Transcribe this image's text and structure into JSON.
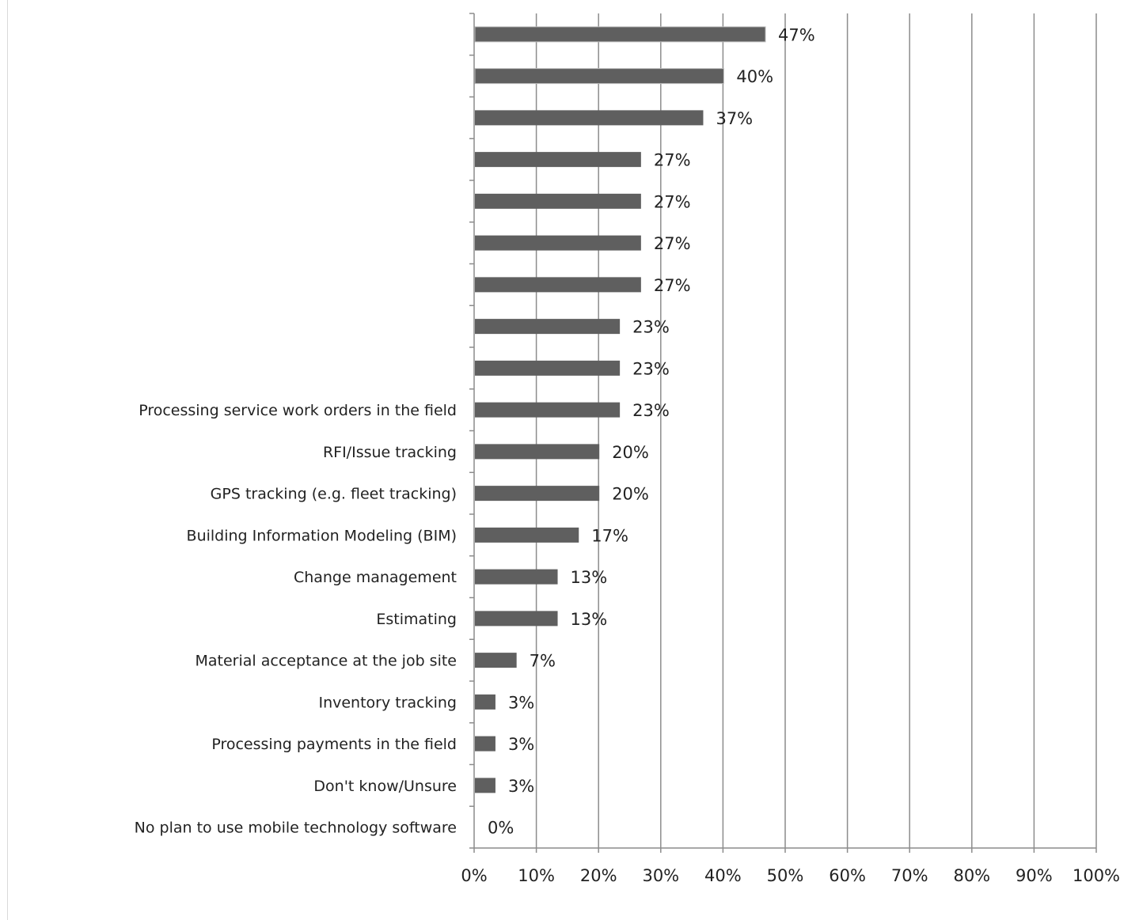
{
  "chart_data": {
    "type": "bar",
    "orientation": "horizontal",
    "title": "",
    "xlabel": "",
    "ylabel": "",
    "xlim": [
      0,
      100
    ],
    "grid": true,
    "legend": "none",
    "categories": [
      "",
      "",
      "",
      "",
      "",
      "",
      "",
      "",
      "",
      "Processing service work orders in the field",
      "RFI/Issue tracking",
      "GPS tracking (e.g. fleet tracking)",
      "Building Information Modeling (BIM)",
      "Change management",
      "Estimating",
      "Material acceptance at the job site",
      "Inventory tracking",
      "Processing payments in the field",
      "Don't know/Unsure",
      "No plan to use mobile technology software"
    ],
    "values": [
      46.7,
      40,
      36.7,
      26.7,
      26.7,
      26.7,
      26.7,
      23.3,
      23.3,
      23.3,
      20,
      20,
      16.7,
      13.3,
      13.3,
      6.7,
      3.3,
      3.3,
      3.3,
      0
    ],
    "data_labels": [
      "47%",
      "40%",
      "37%",
      "27%",
      "27%",
      "27%",
      "27%",
      "23%",
      "23%",
      "23%",
      "20%",
      "20%",
      "17%",
      "13%",
      "13%",
      "7%",
      "3%",
      "3%",
      "3%",
      "0%"
    ],
    "x_ticks": [
      "0%",
      "10%",
      "20%",
      "30%",
      "40%",
      "50%",
      "60%",
      "70%",
      "80%",
      "90%",
      "100%"
    ],
    "colors": {
      "bar": "#5f5f5f",
      "highlight_outline": "#ffffff",
      "grid": "#8c8c8c",
      "axis": "#8c8c8c",
      "text": "#222222"
    }
  }
}
